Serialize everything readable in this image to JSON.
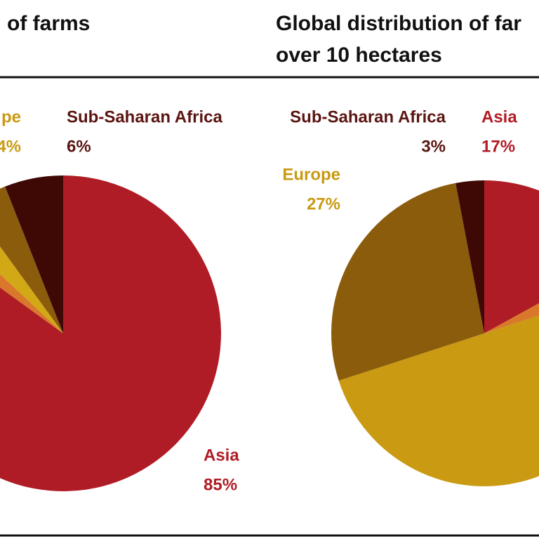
{
  "chart_data": [
    {
      "type": "pie",
      "title": [
        "of farms"
      ],
      "categories": [
        "Asia",
        null,
        null,
        "pe",
        "Sub-Saharan Africa"
      ],
      "values": [
        85,
        2,
        3,
        4,
        6
      ],
      "value_labels": [
        "85%",
        null,
        null,
        "4%",
        "6%"
      ],
      "colors": [
        "#b01c26",
        "#d9782a",
        "#d2a816",
        "#8a5c0c",
        "#3e0905"
      ]
    },
    {
      "type": "pie",
      "title": [
        "Global distribution of far",
        "over 10 hectares"
      ],
      "categories": [
        "Asia",
        null,
        null,
        "Europe",
        "Sub-Saharan Africa"
      ],
      "values": [
        17,
        3,
        50,
        27,
        3
      ],
      "value_labels": [
        "17%",
        null,
        null,
        "27%",
        "3%"
      ],
      "colors": [
        "#b01c26",
        "#d9782a",
        "#c99a12",
        "#8a5c0c",
        "#3e0905"
      ]
    }
  ]
}
